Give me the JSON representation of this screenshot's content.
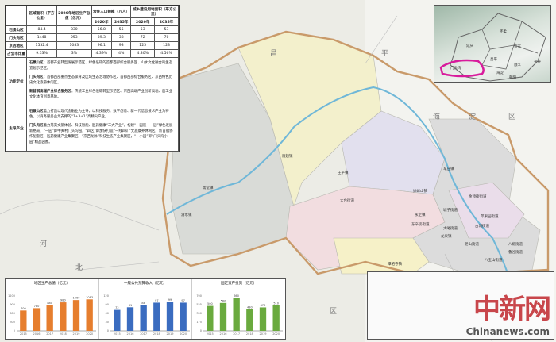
{
  "table": {
    "headers": {
      "area": "区域面积（平方公里）",
      "gdp": "2020年地区生产总值（亿元）",
      "pop": "常住人口规模（万人）",
      "land": "城乡建设用地面积（平方公里）",
      "y2020": "2020年",
      "y2035": "2035年"
    },
    "rows": [
      {
        "name": "石景山区",
        "area": "84.4",
        "gdp": "830",
        "pop2020": "56.8",
        "pop2035": "55",
        "land2020": "53",
        "land2035": "53"
      },
      {
        "name": "门头沟区",
        "area": "1448",
        "gdp": "253",
        "pop2020": "39.3",
        "pop2035": "38",
        "land2020": "72",
        "land2035": "70"
      },
      {
        "name": "京西地区",
        "area": "1532.4",
        "gdp": "1083",
        "pop2020": "96.1",
        "pop2035": "93",
        "land2020": "125",
        "land2035": "123"
      },
      {
        "name": "占全市比重",
        "area": "9.33%",
        "gdp": "3%",
        "pop2020": "4.39%",
        "pop2035": "4%",
        "land2020": "4.30%",
        "land2035": "4.56%"
      }
    ],
    "function": {
      "label": "功能定位",
      "items": [
        {
          "title": "石景山区：",
          "text": "首都产业转型发展示范区、绿色低碳的首都西部综合服务区、山水文化融合的生态宜居示范区。"
        },
        {
          "title": "门头沟区：",
          "text": "首都西部重点生态保育及区域生态治理协作区、首都西部综合服务区、京西特色历史文化旅游休闲区。"
        },
        {
          "title": "新首钢高端产业综合服务区：",
          "text": "传统工业绿色低碳转型示范区、京西高端产业创新高地、后工业文化体育创意基地。"
        }
      ]
    },
    "industry": {
      "label": "主导产业",
      "items": [
        {
          "title": "石景山区",
          "text": "着力打造以现代金融业为主导，以科技服务、数字创意、新一代信息技术产业为特色，以商务服务业为支撑的“1+3+1”高精尖产业。"
        },
        {
          "title": "门头沟区",
          "text": "着力落实文旅体验、科技智能、医药健康“三大产业”，构建“一园區一一园”绿色发展新格局，“一园”即中关村门头沟园，“四区”即加快打造“一线四矿”文旅康养休闲区、新首钢协作配套区、医药健康产业集聚区、“京西龙脉”科技生态产业集聚区，“一小园”即“门头沟小园”精品园圈。"
        }
      ]
    }
  },
  "map": {
    "region_labels": [
      "昌",
      "平",
      "海",
      "淀",
      "区",
      "河",
      "北",
      "区"
    ],
    "town_labels": [
      "雁翅镇",
      "斋堂镇",
      "清水镇",
      "王平镇",
      "大台街道",
      "妙峰山镇",
      "军庄镇",
      "永定镇",
      "龙泉镇",
      "潭柘寺镇",
      "东辛房街道",
      "城子街道",
      "大峪街道",
      "金顶街街道",
      "苹果园街道",
      "古城街道",
      "八角街道",
      "鲁谷街道",
      "老山街道",
      "八宝山街道"
    ],
    "highlight_color": "#d81b9c"
  },
  "inset": {
    "labels": [
      "延庆",
      "怀柔",
      "密云",
      "昌平",
      "顺义",
      "平谷",
      "门头沟",
      "海淀",
      "朝阳",
      "通州",
      "丰台",
      "房山",
      "大兴"
    ]
  },
  "charts": [
    {
      "type": "bar",
      "title": "地区生产总值（亿元）",
      "color": "#e67e2e",
      "categories": [
        "2015",
        "2016",
        "2017",
        "2018",
        "2019",
        "2020"
      ],
      "values": [
        700,
        780,
        880,
        980,
        1060,
        1083
      ],
      "ylim": [
        0,
        1200
      ]
    },
    {
      "type": "bar",
      "title": "一般公共预算收入（亿元）",
      "color": "#3a6cc0",
      "categories": [
        "2015",
        "2016",
        "2017",
        "2018",
        "2019",
        "2020"
      ],
      "values": [
        72,
        81,
        88,
        97,
        99,
        97
      ],
      "ylim": [
        0,
        120
      ]
    },
    {
      "type": "bar",
      "title": "固定资产投资（亿元）",
      "color": "#6aaa3e",
      "categories": [
        "2015",
        "2016",
        "2017",
        "2018",
        "2019",
        "2020"
      ],
      "values": [
        500,
        560,
        660,
        430,
        470,
        510
      ],
      "ylim": [
        0,
        700
      ]
    }
  ],
  "watermark": {
    "cn": "中新网",
    "en": "Chinanews.com"
  }
}
